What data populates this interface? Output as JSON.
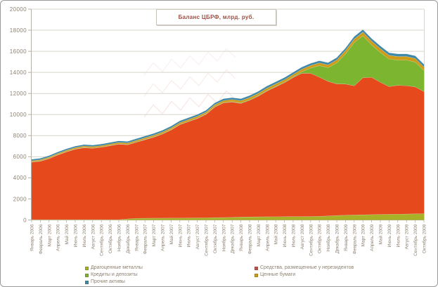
{
  "chart_data": {
    "type": "area",
    "stacked": true,
    "title": "Баланс ЦБРФ, млрд. руб.",
    "xlabel": "",
    "ylabel": "",
    "ylim": [
      0,
      20000
    ],
    "ytick_step": 2000,
    "grid": true,
    "legend_position": "bottom",
    "categories": [
      "Январь 2006",
      "Февраль 2006",
      "Март 2006",
      "Апрель 2006",
      "Май 2006",
      "Июнь 2006",
      "Июль 2006",
      "Август 2006",
      "Сентябрь 2006",
      "Октябрь 2006",
      "Ноябрь 2006",
      "Декабрь 2006",
      "Январь 2007",
      "Февраль 2007",
      "Март 2007",
      "Апрель 2007",
      "Май 2007",
      "Июнь 2007",
      "Июль 2007",
      "Август 2007",
      "Сентябрь 2007",
      "Октябрь 2007",
      "Ноябрь 2007",
      "Декабрь 2007",
      "Январь 2008",
      "Февраль 2008",
      "Март 2008",
      "Апрель 2008",
      "Май 2008",
      "Июнь 2008",
      "Июль 2008",
      "Август 2008",
      "Сентябрь 2008",
      "Октябрь 2008",
      "Ноябрь 2008",
      "Декабрь 2008",
      "Январь 2009",
      "Февраль 2009",
      "Март 2009",
      "Апрель 2009",
      "Май 2009",
      "Июнь 2009",
      "Июль 2009",
      "Август 2009",
      "Сентябрь 2009",
      "Октябрь 2009"
    ],
    "series": [
      {
        "name": "Драгоценные металлы",
        "color": "#A9B227",
        "values": [
          40,
          40,
          40,
          40,
          40,
          40,
          40,
          40,
          40,
          40,
          40,
          110,
          170,
          175,
          180,
          185,
          190,
          195,
          200,
          210,
          220,
          230,
          240,
          260,
          290,
          300,
          310,
          315,
          320,
          325,
          330,
          335,
          340,
          360,
          390,
          430,
          460,
          480,
          500,
          515,
          530,
          545,
          560,
          575,
          590,
          610
        ]
      },
      {
        "name": "Средства, размещенные у нерезидентов",
        "color": "#E6491C",
        "legend_color": "#C0504D",
        "values": [
          5445,
          5542,
          5788,
          6134,
          6431,
          6678,
          6825,
          6772,
          6869,
          7016,
          7162,
          7034,
          7205,
          7444,
          7683,
          7972,
          8361,
          8850,
          9138,
          9421,
          9804,
          10487,
          10870,
          10940,
          10775,
          11058,
          11441,
          11929,
          12317,
          12705,
          13193,
          13591,
          13579,
          13195,
          12770,
          12480,
          12440,
          12260,
          13000,
          13015,
          12540,
          12120,
          12220,
          12165,
          12040,
          11580
        ]
      },
      {
        "name": "Кредиты и депозиты",
        "color": "#7CB530",
        "values": [
          30,
          30,
          30,
          30,
          30,
          30,
          30,
          30,
          30,
          30,
          30,
          30,
          40,
          40,
          40,
          40,
          40,
          40,
          40,
          40,
          40,
          40,
          40,
          40,
          60,
          60,
          60,
          60,
          60,
          60,
          60,
          150,
          500,
          1100,
          1300,
          2000,
          2870,
          4100,
          3980,
          3090,
          2840,
          2605,
          2385,
          2430,
          2360,
          2000
        ]
      },
      {
        "name": "Ценные бумаги",
        "color": "#D09C16",
        "values": [
          110,
          112,
          115,
          118,
          120,
          122,
          124,
          126,
          128,
          130,
          133,
          136,
          140,
          144,
          148,
          152,
          156,
          160,
          165,
          170,
          175,
          180,
          185,
          190,
          200,
          205,
          210,
          215,
          220,
          225,
          230,
          235,
          240,
          250,
          260,
          280,
          310,
          330,
          345,
          350,
          355,
          355,
          350,
          345,
          340,
          335
        ]
      },
      {
        "name": "Прочие активы",
        "color": "#4189A8",
        "values": [
          125,
          126,
          127,
          128,
          129,
          130,
          131,
          132,
          133,
          134,
          135,
          140,
          145,
          147,
          149,
          151,
          153,
          155,
          157,
          159,
          161,
          163,
          165,
          170,
          175,
          177,
          179,
          181,
          183,
          185,
          187,
          189,
          191,
          195,
          200,
          210,
          220,
          225,
          230,
          232,
          234,
          235,
          235,
          234,
          233,
          232
        ]
      }
    ],
    "legend": {
      "left": [
        "Драгоценные металлы",
        "Кредиты и депозиты",
        "Прочие активы"
      ],
      "right": [
        "Средства, размещенные у нерезидентов",
        "Ценные бумаги"
      ]
    }
  }
}
